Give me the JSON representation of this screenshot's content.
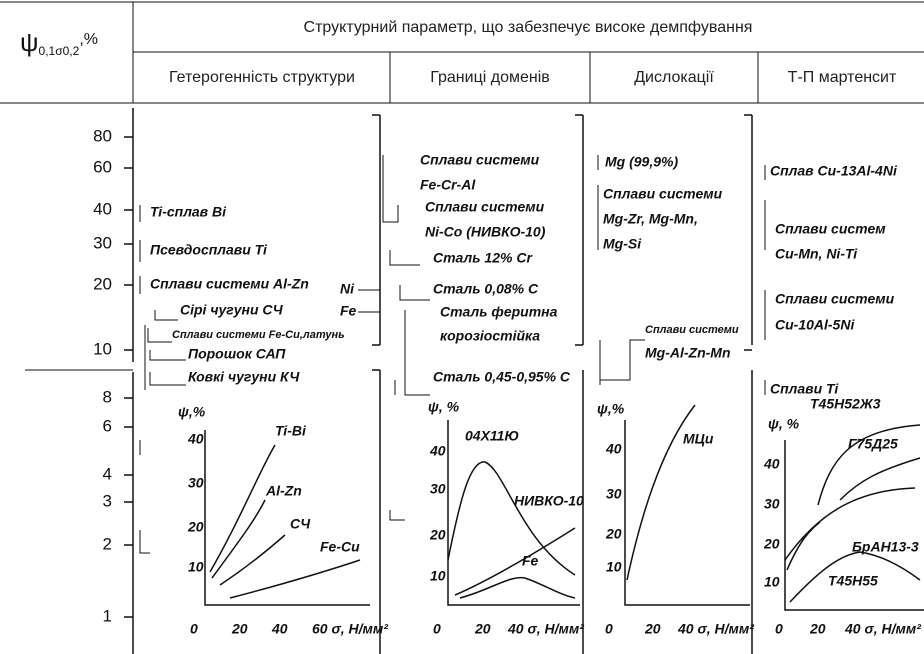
{
  "header": {
    "symbol": "ψ",
    "subscript": "0,1σ0,2",
    "unit": ",%",
    "title": "Структурний параметр, що забезпечує високе демпфування",
    "columns": [
      "Гетерогенність структури",
      "Границі доменів",
      "Дислокації",
      "Т-П мартенсит"
    ]
  },
  "scale": {
    "upper": [
      "80",
      "60",
      "40",
      "30",
      "20",
      "10"
    ],
    "lower": [
      "8",
      "6",
      "4",
      "3",
      "2",
      "1"
    ]
  },
  "columns": [
    {
      "labels": [
        "Ti-сплав Bi",
        "Псевдосплави Ti",
        "Сплави системи Al-Zn",
        "Сірі чугуни СЧ",
        "Сплави системи Fe-Cu,латунь",
        "Порошок САП",
        "Ковкі чугуни КЧ"
      ]
    },
    {
      "labels": [
        "Сплави системи",
        "Fe-Cr-Al",
        "Сплави системи",
        "Ni-Co (НИВКО-10)",
        "Сталь 12% Cr",
        "Ni",
        "Fe",
        "Сталь 0,08% С",
        "Сталь феритна",
        "корозіостійка",
        "Сталь 0,45-0,95% С"
      ]
    },
    {
      "labels": [
        "Mg (99,9%)",
        "Сплави системи",
        "Mg-Zr, Mg-Mn,",
        "Mg-Si",
        "Сплави системи",
        "Mg-Al-Zn-Mn"
      ]
    },
    {
      "labels": [
        "Сплав Cu-13Al-4Ni",
        "Сплави систем",
        "Cu-Mn, Ni-Ti",
        "Сплави системи",
        "Cu-10Al-5Ni",
        "Сплави Ti"
      ]
    }
  ],
  "insets": [
    {
      "ylabel": "ψ,%",
      "yticks": [
        "40",
        "30",
        "20",
        "10"
      ],
      "xticks": [
        "0",
        "20",
        "40",
        "60 σ, Н/мм²"
      ],
      "curves": [
        "Ti-Bi",
        "Al-Zn",
        "СЧ",
        "Fe-Cu"
      ]
    },
    {
      "ylabel": "ψ, %",
      "yticks": [
        "40",
        "30",
        "20",
        "10"
      ],
      "xticks": [
        "0",
        "20",
        "40 σ, Н/мм²"
      ],
      "curves": [
        "04Х11Ю",
        "НИВКО-10",
        "Fe"
      ]
    },
    {
      "ylabel": "ψ,%",
      "yticks": [
        "40",
        "30",
        "20",
        "10"
      ],
      "xticks": [
        "0",
        "20",
        "40 σ, Н/мм²"
      ],
      "curves": [
        "МЦи"
      ]
    },
    {
      "ylabel": "ψ, %",
      "yticks": [
        "40",
        "30",
        "20",
        "10"
      ],
      "xticks": [
        "0",
        "20",
        "40 σ, Н/мм²"
      ],
      "curves": [
        "Т45Н52Ж3",
        "Г75Д25",
        "БрАН13-3",
        "Т45Н55"
      ]
    }
  ]
}
